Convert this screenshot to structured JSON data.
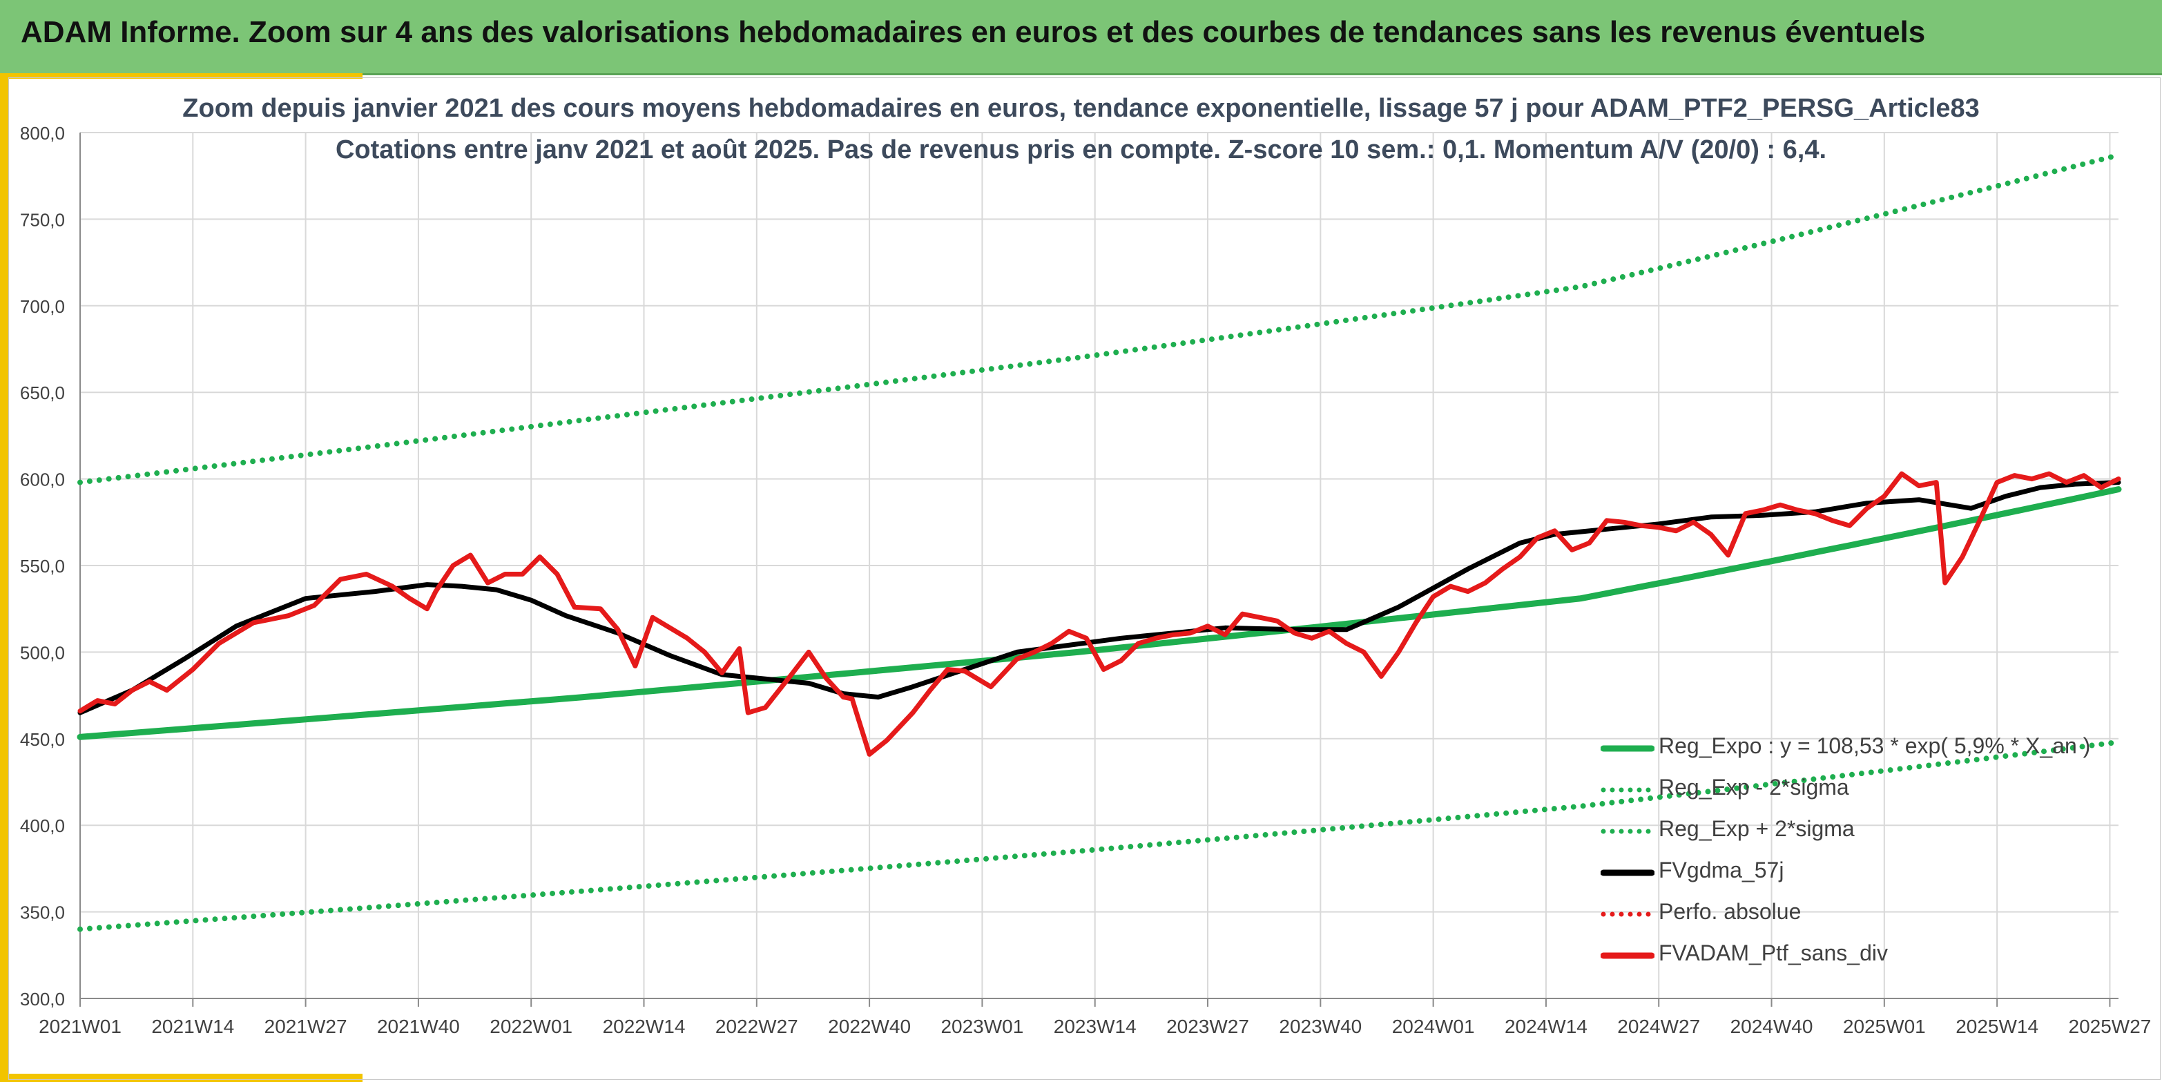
{
  "banner": {
    "title": "ADAM Informe. Zoom sur 4 ans des valorisations hebdomadaires en euros et des courbes de tendances sans les revenus éventuels"
  },
  "colors": {
    "banner_bg": "#7cc576",
    "accent": "#f2c400",
    "trend": "#1eae4f",
    "smooth": "#000000",
    "portfolio": "#e51a1a",
    "grid": "#d9d9d9"
  },
  "chart_data": {
    "type": "line",
    "title": "Zoom depuis janvier 2021 des cours moyens hebdomadaires en euros, tendance exponentielle, lissage 57 j pour ADAM_PTF2_PERSG_Article83",
    "subtitle": "Cotations entre janv 2021 et août 2025. Pas de revenus pris en compte. Z-score 10 sem.: 0,1. Momentum A/V (20/0) : 6,4.",
    "xlabel": "",
    "ylabel": "",
    "ylim": [
      300,
      800
    ],
    "y_ticks": [
      "300,0",
      "350,0",
      "400,0",
      "450,0",
      "500,0",
      "550,0",
      "600,0",
      "650,0",
      "700,0",
      "750,0",
      "800,0"
    ],
    "x_ticks": [
      "2021W01",
      "2021W14",
      "2021W27",
      "2021W40",
      "2022W01",
      "2022W14",
      "2022W27",
      "2022W40",
      "2023W01",
      "2023W14",
      "2023W27",
      "2023W40",
      "2024W01",
      "2024W14",
      "2024W27",
      "2024W40",
      "2025W01",
      "2025W14",
      "2025W27"
    ],
    "grid": true,
    "legend_position": "bottom-right",
    "legend": [
      {
        "name": "Reg_Expo : y = 108,53 * exp( 5,9% * X_an )",
        "style": "solid",
        "color": "#1eae4f"
      },
      {
        "name": "Reg_Exp - 2*sigma",
        "style": "dotted",
        "color": "#1eae4f"
      },
      {
        "name": "Reg_Exp + 2*sigma",
        "style": "dotted",
        "color": "#1eae4f"
      },
      {
        "name": "FVgdma_57j",
        "style": "solid",
        "color": "#000000"
      },
      {
        "name": "Perfo. absolue",
        "style": "dotted",
        "color": "#e51a1a"
      },
      {
        "name": "FVADAM_Ptf_sans_div",
        "style": "solid",
        "color": "#e51a1a"
      }
    ],
    "series": [
      {
        "name": "Reg_Expo : y = 108,53 * exp( 5,9% * X_an )",
        "x": [
          0,
          58,
          115,
          173,
          235
        ],
        "values": [
          451,
          474,
          500,
          531,
          594
        ]
      },
      {
        "name": "Reg_Exp - 2*sigma",
        "x": [
          0,
          58,
          115,
          173,
          235
        ],
        "values": [
          340,
          362,
          385,
          411,
          448
        ]
      },
      {
        "name": "Reg_Exp + 2*sigma",
        "x": [
          0,
          58,
          115,
          173,
          235
        ],
        "values": [
          598,
          634,
          670,
          711,
          787
        ]
      },
      {
        "name": "FVgdma_57j",
        "x": [
          0,
          6,
          12,
          18,
          26,
          34,
          40,
          44,
          48,
          52,
          56,
          62,
          68,
          74,
          80,
          84,
          88,
          92,
          96,
          102,
          108,
          114,
          120,
          126,
          132,
          140,
          146,
          152,
          160,
          166,
          170,
          176,
          182,
          188,
          194,
          200,
          206,
          212,
          218,
          222,
          226,
          230,
          235
        ],
        "values": [
          465,
          478,
          496,
          515,
          531,
          535,
          539,
          538,
          536,
          530,
          521,
          511,
          498,
          487,
          484,
          482,
          476,
          474,
          480,
          490,
          500,
          504,
          508,
          511,
          514,
          513,
          513,
          526,
          548,
          563,
          568,
          571,
          574,
          578,
          579,
          581,
          586,
          588,
          583,
          590,
          595,
          597,
          598
        ]
      },
      {
        "name": "FVADAM_Ptf_sans_div",
        "x": [
          0,
          2,
          4,
          6,
          8,
          10,
          13,
          16,
          20,
          24,
          27,
          30,
          33,
          36,
          38,
          40,
          41,
          43,
          45,
          47,
          49,
          51,
          53,
          55,
          57,
          60,
          62,
          64,
          66,
          70,
          72,
          74,
          76,
          77,
          79,
          82,
          84,
          86,
          88,
          89,
          91,
          93,
          96,
          98,
          100,
          102,
          105,
          108,
          110,
          112,
          114,
          116,
          118,
          120,
          122,
          124,
          126,
          128,
          130,
          132,
          134,
          136,
          138,
          140,
          142,
          144,
          146,
          148,
          150,
          152,
          154,
          156,
          158,
          160,
          162,
          164,
          166,
          168,
          170,
          172,
          174,
          176,
          178,
          180,
          182,
          184,
          186,
          188,
          190,
          192,
          194,
          196,
          198,
          200,
          202,
          204,
          206,
          208,
          210,
          212,
          214,
          215,
          217,
          219,
          221,
          223,
          225,
          227,
          229,
          231,
          233,
          235
        ],
        "values": [
          466,
          472,
          470,
          478,
          483,
          478,
          490,
          505,
          517,
          521,
          527,
          542,
          545,
          538,
          531,
          525,
          535,
          550,
          556,
          540,
          545,
          545,
          555,
          545,
          526,
          525,
          513,
          492,
          520,
          508,
          500,
          488,
          502,
          465,
          468,
          487,
          500,
          485,
          474,
          473,
          441,
          449,
          465,
          478,
          490,
          489,
          480,
          496,
          500,
          505,
          512,
          508,
          490,
          495,
          505,
          508,
          510,
          511,
          515,
          510,
          522,
          520,
          518,
          511,
          508,
          512,
          505,
          500,
          486,
          500,
          517,
          532,
          538,
          535,
          540,
          548,
          555,
          566,
          570,
          559,
          563,
          576,
          575,
          573,
          572,
          570,
          575,
          568,
          556,
          580,
          582,
          585,
          582,
          580,
          576,
          573,
          583,
          590,
          603,
          596,
          598,
          540,
          555,
          576,
          598,
          602,
          600,
          603,
          598,
          602,
          595,
          600
        ]
      },
      {
        "name": "Perfo. absolue",
        "x": [],
        "values": []
      }
    ]
  }
}
